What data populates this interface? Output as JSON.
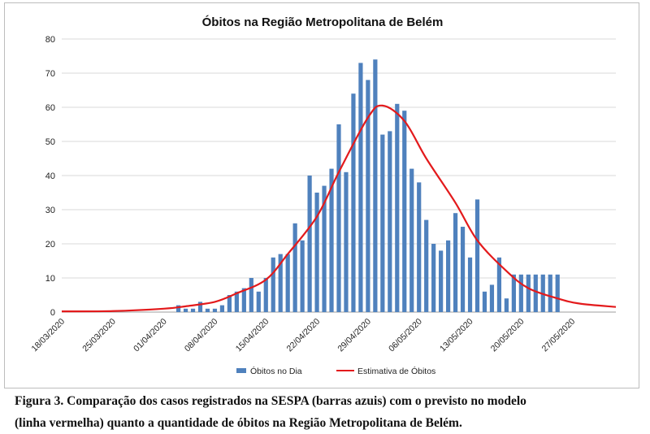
{
  "chart_data": {
    "type": "bar",
    "title": "Óbitos na Região Metropolitana de Belém",
    "xlabel": "",
    "ylabel": "",
    "ylim": [
      0,
      80
    ],
    "yticks": [
      0,
      10,
      20,
      30,
      40,
      50,
      60,
      70,
      80
    ],
    "grid": true,
    "legend_position": "bottom",
    "x_start": "2020-03-18",
    "x_end": "2020-06-02",
    "x_tick_labels": [
      "18/03/2020",
      "25/03/2020",
      "01/04/2020",
      "08/04/2020",
      "15/04/2020",
      "22/04/2020",
      "29/04/2020",
      "06/05/2020",
      "13/05/2020",
      "20/05/2020",
      "27/05/2020"
    ],
    "series": [
      {
        "name": "Óbitos no Dia",
        "kind": "bar",
        "color": "#4f81bd",
        "x": [
          "2020-04-03",
          "2020-04-04",
          "2020-04-05",
          "2020-04-06",
          "2020-04-07",
          "2020-04-08",
          "2020-04-09",
          "2020-04-10",
          "2020-04-11",
          "2020-04-12",
          "2020-04-13",
          "2020-04-14",
          "2020-04-15",
          "2020-04-16",
          "2020-04-17",
          "2020-04-18",
          "2020-04-19",
          "2020-04-20",
          "2020-04-21",
          "2020-04-22",
          "2020-04-23",
          "2020-04-24",
          "2020-04-25",
          "2020-04-26",
          "2020-04-27",
          "2020-04-28",
          "2020-04-29",
          "2020-04-30",
          "2020-05-01",
          "2020-05-02",
          "2020-05-03",
          "2020-05-04",
          "2020-05-05",
          "2020-05-06",
          "2020-05-07",
          "2020-05-08",
          "2020-05-09",
          "2020-05-10",
          "2020-05-11",
          "2020-05-12",
          "2020-05-13",
          "2020-05-14",
          "2020-05-15",
          "2020-05-16",
          "2020-05-17",
          "2020-05-18",
          "2020-05-19",
          "2020-05-20",
          "2020-05-21",
          "2020-05-22",
          "2020-05-23",
          "2020-05-24",
          "2020-05-25"
        ],
        "values": [
          2,
          1,
          1,
          3,
          1,
          1,
          2,
          5,
          6,
          7,
          10,
          6,
          10,
          16,
          17,
          17,
          26,
          21,
          40,
          35,
          37,
          42,
          55,
          41,
          64,
          73,
          68,
          74,
          52,
          53,
          61,
          59,
          42,
          38,
          27,
          20,
          18,
          21,
          29,
          25,
          16,
          33,
          6,
          8,
          16,
          4,
          11,
          11,
          11,
          11,
          11,
          11,
          11
        ]
      },
      {
        "name": "Estimativa de Óbitos",
        "kind": "line",
        "color": "#e31a1c",
        "x": [
          "2020-03-18",
          "2020-03-25",
          "2020-04-01",
          "2020-04-04",
          "2020-04-08",
          "2020-04-11",
          "2020-04-15",
          "2020-04-18",
          "2020-04-22",
          "2020-04-25",
          "2020-04-29",
          "2020-05-01",
          "2020-05-04",
          "2020-05-07",
          "2020-05-11",
          "2020-05-14",
          "2020-05-18",
          "2020-05-21",
          "2020-05-25",
          "2020-05-28",
          "2020-06-02"
        ],
        "values": [
          0.2,
          0.3,
          1.0,
          1.7,
          3.0,
          5.5,
          9.5,
          17,
          28,
          41,
          57,
          60.5,
          56,
          45,
          32,
          21,
          12,
          7,
          4,
          2.5,
          1.5
        ]
      }
    ]
  },
  "legend": [
    {
      "label": "Óbitos no Dia",
      "color": "#4f81bd"
    },
    {
      "label": "Estimativa de Óbitos",
      "color": "#e31a1c"
    }
  ],
  "caption": {
    "line1": "Figura 3. Comparação dos casos registrados na SESPA (barras azuis) com o previsto no modelo",
    "line2": "(linha vermelha) quanto a quantidade de óbitos na Região Metropolitana de Belém."
  }
}
